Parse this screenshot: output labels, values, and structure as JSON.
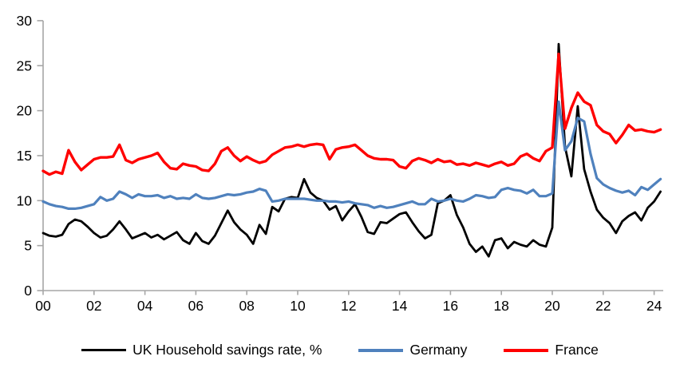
{
  "chart_data": {
    "type": "line",
    "title": "",
    "frequency": "quarterly",
    "x_start": 2000,
    "x_step_years": 0.25,
    "grid": false,
    "legend_position": "bottom",
    "x_axis": {
      "tick_labels": [
        "00",
        "02",
        "04",
        "06",
        "08",
        "10",
        "12",
        "14",
        "16",
        "18",
        "20",
        "22",
        "24"
      ],
      "tick_years": [
        2000,
        2002,
        2004,
        2006,
        2008,
        2010,
        2012,
        2014,
        2016,
        2018,
        2020,
        2022,
        2024
      ],
      "range": [
        2000,
        2024.5
      ]
    },
    "y_axis": {
      "ticks": [
        0,
        5,
        10,
        15,
        20,
        25,
        30
      ],
      "range": [
        0,
        30
      ]
    },
    "series": [
      {
        "name": "UK Household savings rate, %",
        "color": "#000000",
        "values": [
          6.4,
          6.1,
          6.0,
          6.2,
          7.4,
          7.9,
          7.7,
          7.1,
          6.4,
          5.9,
          6.1,
          6.8,
          7.7,
          6.8,
          5.8,
          6.1,
          6.4,
          5.9,
          6.2,
          5.7,
          6.1,
          6.5,
          5.6,
          5.2,
          6.4,
          5.5,
          5.2,
          6.1,
          7.5,
          8.9,
          7.6,
          6.8,
          6.2,
          5.2,
          7.3,
          6.3,
          9.3,
          8.8,
          10.2,
          10.4,
          10.3,
          12.4,
          10.9,
          10.3,
          10.0,
          9.0,
          9.4,
          7.8,
          8.8,
          9.6,
          8.2,
          6.5,
          6.3,
          7.6,
          7.5,
          8.0,
          8.5,
          8.7,
          7.6,
          6.6,
          5.8,
          6.2,
          9.7,
          10.0,
          10.6,
          8.4,
          7.0,
          5.2,
          4.3,
          4.9,
          3.8,
          5.6,
          5.8,
          4.7,
          5.4,
          5.1,
          4.9,
          5.6,
          5.1,
          4.9,
          7.0,
          27.4,
          16.0,
          12.7,
          20.5,
          13.5,
          11.0,
          9.0,
          8.1,
          7.5,
          6.4,
          7.7,
          8.3,
          8.7,
          7.8,
          9.2,
          9.9,
          11.0
        ]
      },
      {
        "name": "Germany",
        "color": "#4F81BD",
        "values": [
          9.9,
          9.6,
          9.4,
          9.3,
          9.1,
          9.1,
          9.2,
          9.4,
          9.6,
          10.4,
          10.0,
          10.2,
          11.0,
          10.7,
          10.3,
          10.7,
          10.5,
          10.5,
          10.6,
          10.3,
          10.5,
          10.2,
          10.3,
          10.2,
          10.7,
          10.3,
          10.2,
          10.3,
          10.5,
          10.7,
          10.6,
          10.7,
          10.9,
          11.0,
          11.3,
          11.1,
          9.9,
          10.0,
          10.2,
          10.2,
          10.2,
          10.2,
          10.1,
          10.0,
          10.0,
          9.9,
          9.9,
          9.8,
          9.9,
          9.7,
          9.6,
          9.5,
          9.2,
          9.4,
          9.2,
          9.3,
          9.5,
          9.7,
          9.9,
          9.6,
          9.6,
          10.2,
          9.9,
          10.0,
          10.2,
          10.0,
          9.9,
          10.2,
          10.6,
          10.5,
          10.3,
          10.4,
          11.2,
          11.4,
          11.2,
          11.1,
          10.8,
          11.2,
          10.5,
          10.5,
          10.8,
          21.0,
          15.6,
          16.6,
          19.2,
          18.8,
          15.2,
          12.5,
          11.8,
          11.4,
          11.1,
          10.9,
          11.1,
          10.6,
          11.5,
          11.2,
          11.8,
          12.4
        ]
      },
      {
        "name": "France",
        "color": "#FF0000",
        "values": [
          13.3,
          12.9,
          13.2,
          13.0,
          15.6,
          14.3,
          13.4,
          14.0,
          14.6,
          14.8,
          14.8,
          14.9,
          16.2,
          14.5,
          14.2,
          14.6,
          14.8,
          15.0,
          15.3,
          14.3,
          13.6,
          13.5,
          14.1,
          13.9,
          13.8,
          13.4,
          13.3,
          14.1,
          15.5,
          15.9,
          15.0,
          14.4,
          14.9,
          14.5,
          14.2,
          14.4,
          15.1,
          15.5,
          15.9,
          16.0,
          16.2,
          16.0,
          16.2,
          16.3,
          16.2,
          14.6,
          15.7,
          15.9,
          16.0,
          16.2,
          15.6,
          15.0,
          14.7,
          14.6,
          14.6,
          14.5,
          13.8,
          13.6,
          14.4,
          14.7,
          14.5,
          14.2,
          14.6,
          14.3,
          14.4,
          14.0,
          14.1,
          13.9,
          14.2,
          14.0,
          13.8,
          14.1,
          14.3,
          13.9,
          14.1,
          14.9,
          15.2,
          14.7,
          14.4,
          15.5,
          15.9,
          26.3,
          18.0,
          20.3,
          22.0,
          21.0,
          20.6,
          18.4,
          17.7,
          17.4,
          16.4,
          17.3,
          18.4,
          17.8,
          17.9,
          17.7,
          17.6,
          17.9
        ]
      }
    ]
  },
  "legend": {
    "uk": "UK Household savings rate, %",
    "germany": "Germany",
    "france": "France"
  },
  "colors": {
    "uk_line": "#000000",
    "germany_line": "#4F81BD",
    "france_line": "#FF0000",
    "axis": "#A6A6A6",
    "text": "#000000",
    "background": "#FFFFFF"
  }
}
